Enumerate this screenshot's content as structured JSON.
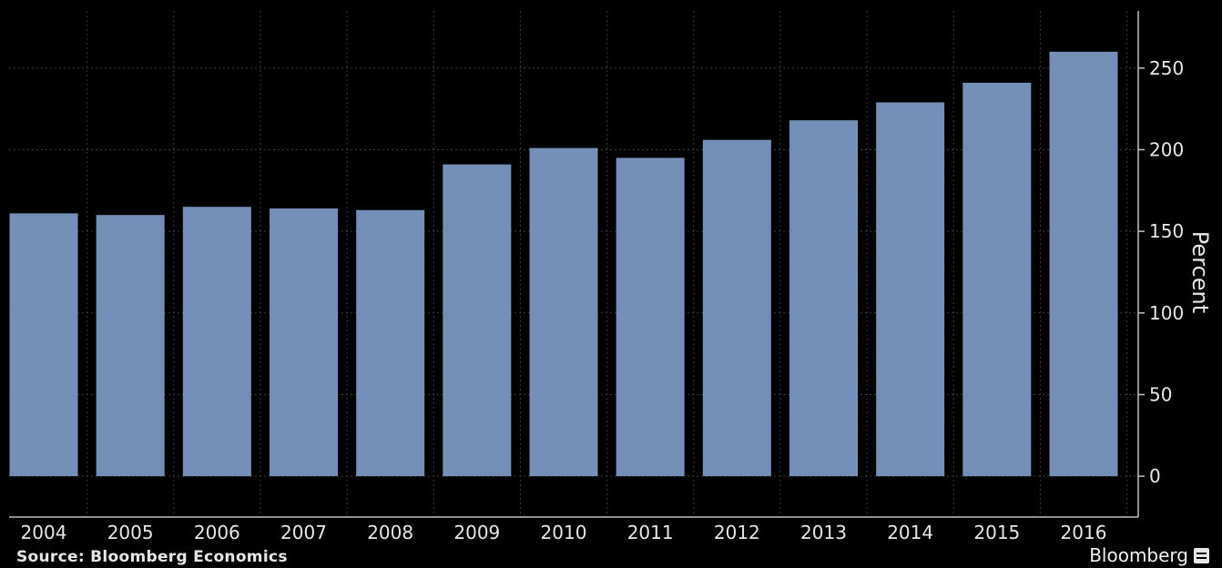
{
  "chart_data": {
    "type": "bar",
    "categories": [
      "2004",
      "2005",
      "2006",
      "2007",
      "2008",
      "2009",
      "2010",
      "2011",
      "2012",
      "2013",
      "2014",
      "2015",
      "2016"
    ],
    "values": [
      161,
      160,
      165,
      164,
      163,
      191,
      201,
      195,
      206,
      218,
      229,
      241,
      260
    ],
    "ylabel": "Percent",
    "ylim": [
      -25,
      285
    ],
    "yticks": [
      0,
      50,
      100,
      150,
      200,
      250
    ],
    "y_axis_position": "right",
    "grid": true,
    "bar_color": "#7590b8",
    "background": "#000000"
  },
  "footer": {
    "source": "Source: Bloomberg Economics",
    "brand": "Bloomberg"
  }
}
